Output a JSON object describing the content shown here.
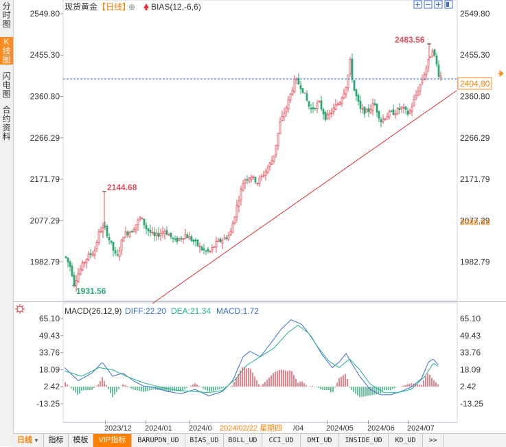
{
  "side_tabs": [
    "分时图",
    "K线图",
    "闪电图",
    "合约资料"
  ],
  "active_side_tab": 1,
  "header": {
    "instrument": "现货黄金",
    "period": "【日线】",
    "indicator_label": "BIAS(12,-6,6)"
  },
  "price_axis": {
    "ticks": [
      "2549.80",
      "2455.30",
      "2360.80",
      "2266.29",
      "2171.79",
      "2077.29",
      "1982.79"
    ],
    "tick_values": [
      2549.8,
      2455.3,
      2360.8,
      2266.29,
      2171.79,
      2077.29,
      1982.79
    ],
    "current_price": "2404.80",
    "cursor_price": "2088.93"
  },
  "macd_header": {
    "name": "MACD(26,12,9)",
    "diff": "DIFF:22.20",
    "dea": "DEA:21.34",
    "macd": "MACD:1.72"
  },
  "macd_axis": {
    "ticks": [
      "65.10",
      "49.43",
      "33.76",
      "18.09",
      "2.42",
      "-13.25"
    ],
    "tick_values": [
      65.1,
      49.43,
      33.76,
      18.09,
      2.42,
      -13.25
    ]
  },
  "date_axis": {
    "labels": [
      "2023/12",
      "2024/01",
      "2024/0",
      "2024/02/22 星期四",
      "/04",
      "2024/05",
      "2024/06",
      "2024/07"
    ],
    "cursor_label": "2024/02/22 星期四"
  },
  "bottom_tabs": [
    {
      "label": "日线",
      "type": "period"
    },
    {
      "label": "指标",
      "type": "plain"
    },
    {
      "label": "模板",
      "type": "plain"
    },
    {
      "label": "VIP指标",
      "type": "vip"
    },
    {
      "label": "BARUPDN_UD",
      "type": "mono"
    },
    {
      "label": "BIAS_UD",
      "type": "mono"
    },
    {
      "label": "BOLL_UD",
      "type": "mono"
    },
    {
      "label": "CCI_UD",
      "type": "mono"
    },
    {
      "label": "DMI_UD",
      "type": "mono"
    },
    {
      "label": "INSIDE_UD",
      "type": "mono"
    },
    {
      "label": "KD_UD",
      "type": "mono"
    },
    {
      "label": ">>",
      "type": "mono"
    }
  ],
  "colors": {
    "up": "#e0505a",
    "down": "#2aa772",
    "diff_line": "#3a6fd0",
    "dea_line": "#20b090",
    "trendline": "#e03030",
    "price_line": "#3a6fd0",
    "current_price_box": "#ff8a1e",
    "cursor_price": "#ff8a1e"
  },
  "chart_data": {
    "type": "candlestick",
    "period": "daily",
    "x_range": [
      "2023/11",
      "2024/07"
    ],
    "ylim": [
      1931.56,
      2549.8
    ],
    "annotations": [
      {
        "label": "2144.68",
        "value": 2144.68,
        "kind": "local-high",
        "date": "2023/12"
      },
      {
        "label": "1931.56",
        "value": 1931.56,
        "kind": "low",
        "date": "2023/11"
      },
      {
        "label": "2483.56",
        "value": 2483.56,
        "kind": "high",
        "date": "2024/07"
      }
    ],
    "approx_monthly_closes": [
      {
        "month": "2023/11",
        "close": 2036
      },
      {
        "month": "2023/12",
        "close": 2063
      },
      {
        "month": "2024/01",
        "close": 2039
      },
      {
        "month": "2024/02",
        "close": 2044
      },
      {
        "month": "2024/03",
        "close": 2230
      },
      {
        "month": "2024/04",
        "close": 2286
      },
      {
        "month": "2024/05",
        "close": 2327
      },
      {
        "month": "2024/06",
        "close": 2326
      },
      {
        "month": "2024/07",
        "close": 2404
      }
    ],
    "last_price": 2404.8,
    "trendline": {
      "from_value": 1900,
      "to_value": 2395
    },
    "macd": {
      "diff": 22.2,
      "dea": 21.34,
      "macd": 1.72,
      "ylim": [
        -13.25,
        65.1
      ]
    }
  }
}
